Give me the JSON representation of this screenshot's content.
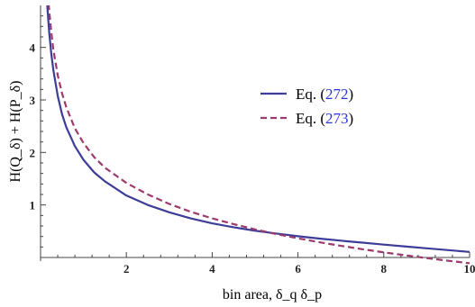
{
  "chart_data": {
    "type": "line",
    "xlabel": "bin area, δ_q δ_p",
    "ylabel": "H(Q_δ) + H(P_δ)",
    "xlim": [
      0,
      10
    ],
    "ylim": [
      0,
      4.8
    ],
    "x_ticks": [
      2,
      4,
      6,
      8,
      10
    ],
    "y_ticks": [
      1,
      2,
      3,
      4
    ],
    "grid": false,
    "legend_position": "center-right",
    "series": [
      {
        "name": "Eq. (272)",
        "name_prefix": "Eq. (",
        "name_ref": "272",
        "name_suffix": ")",
        "color": "#3d3d99",
        "dash": "solid",
        "x": [
          0.1,
          0.15,
          0.2,
          0.25,
          0.3,
          0.4,
          0.5,
          0.6,
          0.8,
          1,
          1.25,
          1.5,
          2,
          2.5,
          3,
          3.5,
          4,
          4.5,
          5,
          5.5,
          6,
          6.5,
          7,
          7.5,
          8,
          8.5,
          9,
          9.5,
          10
        ],
        "y": [
          5.72,
          4.87,
          4.3,
          3.88,
          3.56,
          3.08,
          2.73,
          2.48,
          2.12,
          1.86,
          1.62,
          1.45,
          1.18,
          1.0,
          0.86,
          0.745,
          0.65,
          0.575,
          0.51,
          0.455,
          0.405,
          0.36,
          0.32,
          0.283,
          0.245,
          0.21,
          0.175,
          0.14,
          0.106
        ]
      },
      {
        "name": "Eq. (273)",
        "name_prefix": "Eq. (",
        "name_ref": "273",
        "name_suffix": ")",
        "color": "#9c3a6e",
        "dash": "dashed",
        "x": [
          0.1,
          0.15,
          0.2,
          0.25,
          0.3,
          0.4,
          0.5,
          0.6,
          0.8,
          1,
          1.25,
          1.5,
          2,
          2.5,
          3,
          3.5,
          4,
          4.5,
          5,
          5.5,
          6,
          6.5,
          7,
          7.5,
          8,
          8.5,
          9,
          9.5,
          10
        ],
        "y": [
          6.15,
          5.28,
          4.71,
          4.29,
          3.95,
          3.47,
          3.13,
          2.86,
          2.46,
          2.18,
          1.91,
          1.71,
          1.42,
          1.2,
          1.02,
          0.87,
          0.745,
          0.635,
          0.535,
          0.445,
          0.365,
          0.29,
          0.222,
          0.158,
          0.098,
          0.042,
          -0.012,
          -0.062,
          -0.11
        ]
      }
    ]
  }
}
